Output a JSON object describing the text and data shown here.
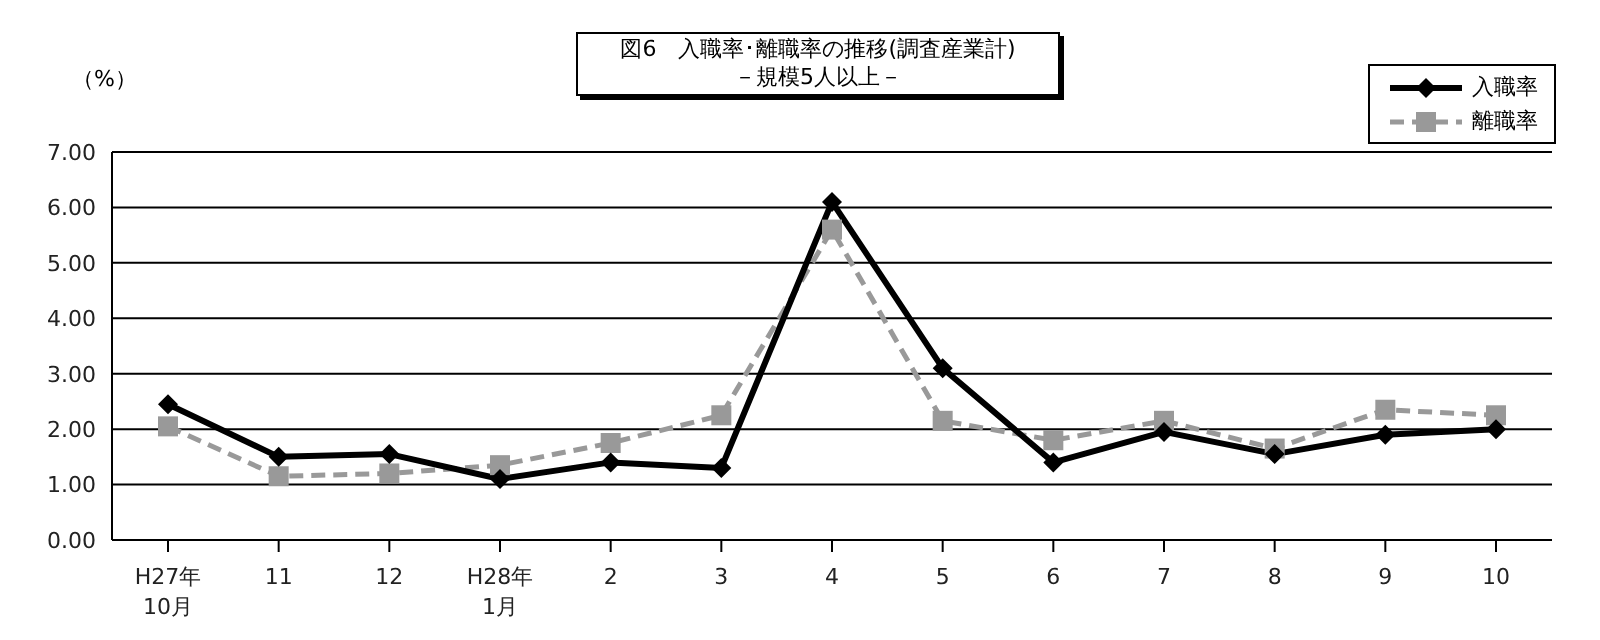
{
  "chart_data": {
    "type": "line",
    "title": "図6　入職率･離職率の推移(調査産業計)",
    "subtitle": "－規模5人以上－",
    "ylabel": "（%）",
    "categories": [
      "H27年\n10月",
      "11",
      "12",
      "H28年\n1月",
      "2",
      "3",
      "4",
      "5",
      "6",
      "7",
      "8",
      "9",
      "10"
    ],
    "series": [
      {
        "name": "入職率",
        "color": "#000000",
        "marker": "diamond",
        "line_style": "solid",
        "values": [
          2.45,
          1.5,
          1.55,
          1.1,
          1.4,
          1.3,
          6.1,
          3.1,
          1.4,
          1.95,
          1.55,
          1.9,
          2.0
        ]
      },
      {
        "name": "離職率",
        "color": "#999999",
        "marker": "square",
        "line_style": "dashed",
        "values": [
          2.05,
          1.15,
          1.2,
          1.35,
          1.75,
          2.25,
          5.6,
          2.15,
          1.8,
          2.15,
          1.65,
          2.35,
          2.25
        ]
      }
    ],
    "ylim": [
      0,
      7
    ],
    "yticks": [
      {
        "value": 0,
        "label": "0.00"
      },
      {
        "value": 1,
        "label": "1.00"
      },
      {
        "value": 2,
        "label": "2.00"
      },
      {
        "value": 3,
        "label": "3.00"
      },
      {
        "value": 4,
        "label": "4.00"
      },
      {
        "value": 5,
        "label": "5.00"
      },
      {
        "value": 6,
        "label": "6.00"
      },
      {
        "value": 7,
        "label": "7.00"
      }
    ],
    "grid": "y",
    "legend": "top right"
  }
}
